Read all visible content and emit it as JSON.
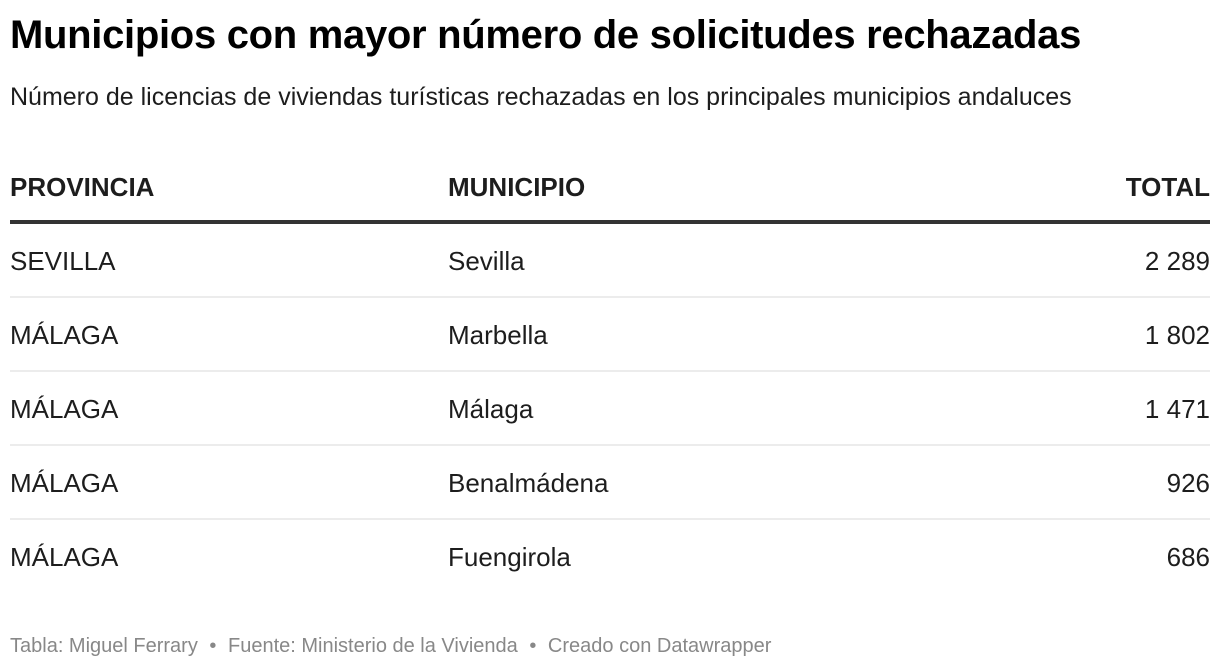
{
  "header": {
    "title": "Municipios con mayor número de solicitudes rechazadas",
    "subtitle": "Número de licencias de viviendas turísticas rechazadas en los principales municipios andaluces"
  },
  "table": {
    "columns": [
      "PROVINCIA",
      "MUNICIPIO",
      "TOTAL"
    ],
    "rows": [
      {
        "provincia": "SEVILLA",
        "municipio": "Sevilla",
        "total": "2 289"
      },
      {
        "provincia": "MÁLAGA",
        "municipio": "Marbella",
        "total": "1 802"
      },
      {
        "provincia": "MÁLAGA",
        "municipio": "Málaga",
        "total": "1 471"
      },
      {
        "provincia": "MÁLAGA",
        "municipio": "Benalmádena",
        "total": "926"
      },
      {
        "provincia": "MÁLAGA",
        "municipio": "Fuengirola",
        "total": "686"
      }
    ]
  },
  "footer": {
    "credit": "Tabla: Miguel Ferrary",
    "separator": "•",
    "source": "Fuente: Ministerio de la Vivienda",
    "tool": "Creado con Datawrapper"
  },
  "colors": {
    "title": "#000000",
    "text": "#1d1d1d",
    "header_rule": "#333333",
    "row_rule": "#ececec",
    "footer": "#888888"
  },
  "chart_data": {
    "type": "table",
    "title": "Municipios con mayor número de solicitudes rechazadas",
    "subtitle": "Número de licencias de viviendas turísticas rechazadas en los principales municipios andaluces",
    "columns": [
      "PROVINCIA",
      "MUNICIPIO",
      "TOTAL"
    ],
    "categories": [
      "Sevilla",
      "Marbella",
      "Málaga",
      "Benalmádena",
      "Fuengirola"
    ],
    "provinces": [
      "SEVILLA",
      "MÁLAGA",
      "MÁLAGA",
      "MÁLAGA",
      "MÁLAGA"
    ],
    "values": [
      2289,
      1802,
      1471,
      926,
      686
    ],
    "source": "Ministerio de la Vivienda"
  }
}
